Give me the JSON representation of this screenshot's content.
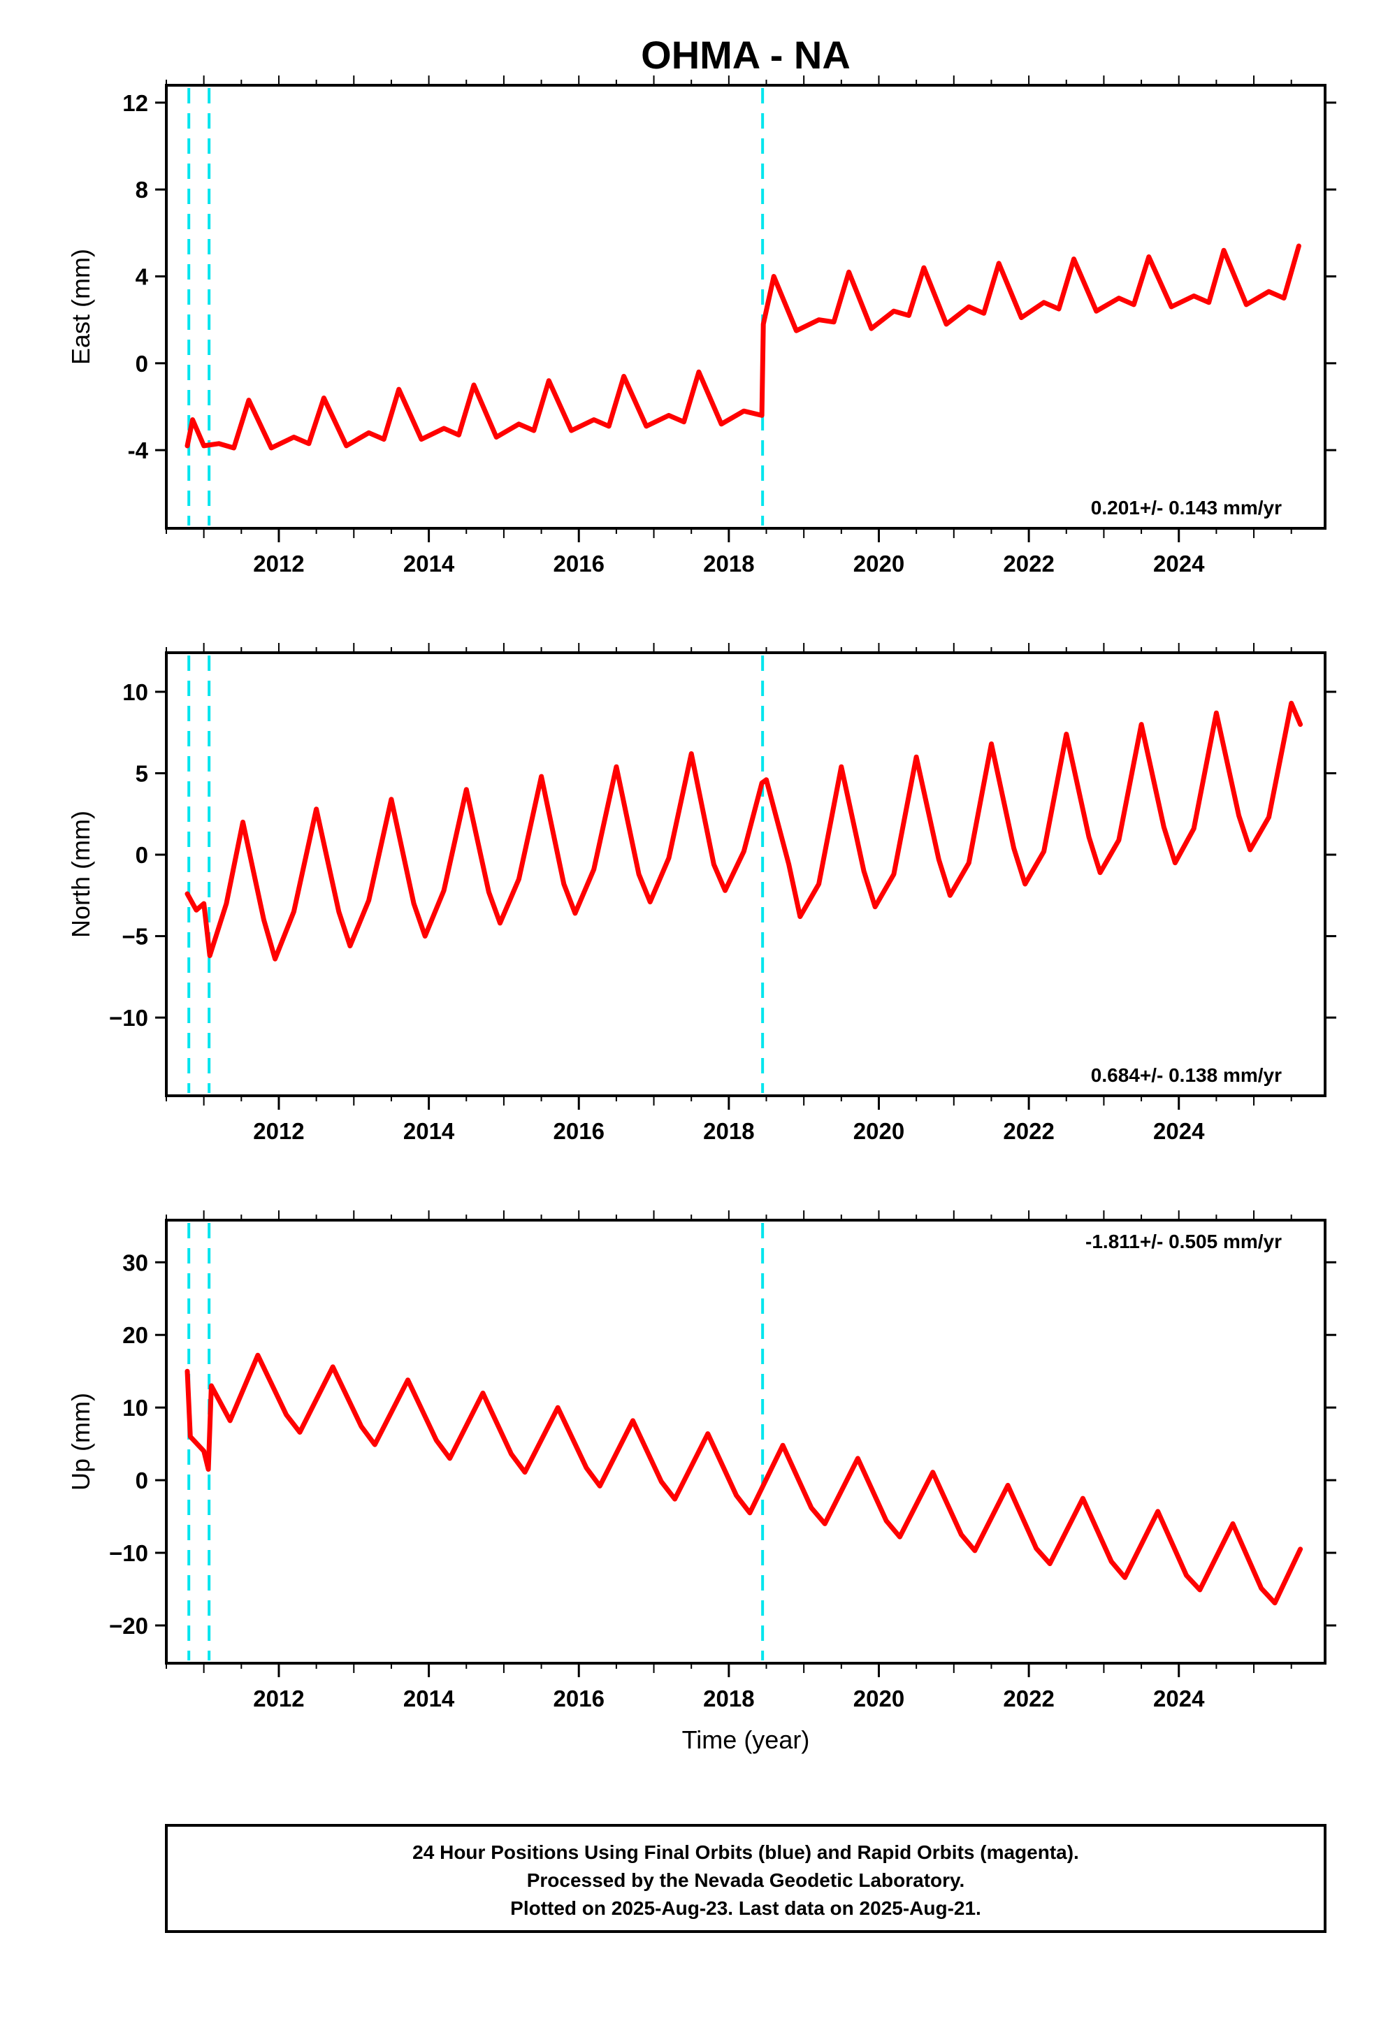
{
  "chart_data": {
    "type": "scatter",
    "title": "OHMA - NA",
    "xlabel": "Time (year)",
    "xlim": [
      2010.5,
      2025.95
    ],
    "x_ticks": [
      2012,
      2014,
      2016,
      2018,
      2020,
      2022,
      2024
    ],
    "x_tick_labels": [
      "2012",
      "2014",
      "2016",
      "2018",
      "2020",
      "2022",
      "2024"
    ],
    "offset_epochs": [
      2010.8,
      2011.07,
      2018.45
    ],
    "colors": {
      "final": "#0000ff",
      "rapid": "#ff00ff",
      "model": "#ff0000",
      "offset": "#00e5ee"
    },
    "panels": [
      {
        "key": "east",
        "ylabel": "East (mm)",
        "ylim": [
          -7.6,
          12.8
        ],
        "y_ticks": [
          -4,
          0,
          4,
          8,
          12
        ],
        "y_tick_labels": [
          "-4",
          "0",
          "4",
          "8",
          "12"
        ],
        "rate": "0.201+/- 0.143 mm/yr",
        "rate_position": "bottom-right",
        "model": {
          "x": [
            2010.78,
            2010.85,
            2011.0,
            2011.2,
            2011.4,
            2011.6,
            2011.9,
            2012.2,
            2012.4,
            2012.6,
            2012.9,
            2013.2,
            2013.4,
            2013.6,
            2013.9,
            2014.2,
            2014.4,
            2014.6,
            2014.9,
            2015.2,
            2015.4,
            2015.6,
            2015.9,
            2016.2,
            2016.4,
            2016.6,
            2016.9,
            2017.2,
            2017.4,
            2017.6,
            2017.9,
            2018.2,
            2018.44,
            2018.46,
            2018.6,
            2018.9,
            2019.2,
            2019.4,
            2019.6,
            2019.9,
            2020.2,
            2020.4,
            2020.6,
            2020.9,
            2021.2,
            2021.4,
            2021.6,
            2021.9,
            2022.2,
            2022.4,
            2022.6,
            2022.9,
            2023.2,
            2023.4,
            2023.6,
            2023.9,
            2024.2,
            2024.4,
            2024.6,
            2024.9,
            2025.2,
            2025.4,
            2025.6
          ],
          "y": [
            -3.8,
            -2.6,
            -3.8,
            -3.7,
            -3.9,
            -1.7,
            -3.9,
            -3.4,
            -3.7,
            -1.6,
            -3.8,
            -3.2,
            -3.5,
            -1.2,
            -3.5,
            -3.0,
            -3.3,
            -1.0,
            -3.4,
            -2.8,
            -3.1,
            -0.8,
            -3.1,
            -2.6,
            -2.9,
            -0.6,
            -2.9,
            -2.4,
            -2.7,
            -0.4,
            -2.8,
            -2.2,
            -2.4,
            1.8,
            4.0,
            1.5,
            2.0,
            1.9,
            4.2,
            1.6,
            2.4,
            2.2,
            4.4,
            1.8,
            2.6,
            2.3,
            4.6,
            2.1,
            2.8,
            2.5,
            4.8,
            2.4,
            3.0,
            2.7,
            4.9,
            2.6,
            3.1,
            2.8,
            5.2,
            2.7,
            3.3,
            3.0,
            5.4
          ]
        }
      },
      {
        "key": "north",
        "ylabel": "North (mm)",
        "ylim": [
          -14.8,
          12.4
        ],
        "y_ticks": [
          -10,
          -5,
          0,
          5,
          10
        ],
        "y_tick_labels": [
          "−10",
          "−5",
          "0",
          "5",
          "10"
        ],
        "rate": "0.684+/- 0.138 mm/yr",
        "rate_position": "bottom-right",
        "model": {
          "x": [
            2010.78,
            2010.9,
            2011.0,
            2011.08,
            2011.3,
            2011.52,
            2011.8,
            2011.95,
            2012.2,
            2012.5,
            2012.8,
            2012.95,
            2013.2,
            2013.5,
            2013.8,
            2013.95,
            2014.2,
            2014.5,
            2014.8,
            2014.95,
            2015.2,
            2015.5,
            2015.8,
            2015.95,
            2016.2,
            2016.5,
            2016.8,
            2016.95,
            2017.2,
            2017.5,
            2017.8,
            2017.95,
            2018.2,
            2018.44,
            2018.5,
            2018.8,
            2018.95,
            2019.2,
            2019.5,
            2019.8,
            2019.95,
            2020.2,
            2020.5,
            2020.8,
            2020.95,
            2021.2,
            2021.5,
            2021.8,
            2021.95,
            2022.2,
            2022.5,
            2022.8,
            2022.95,
            2023.2,
            2023.5,
            2023.8,
            2023.95,
            2024.2,
            2024.5,
            2024.8,
            2024.95,
            2025.2,
            2025.5,
            2025.62
          ],
          "y": [
            -2.4,
            -3.4,
            -3.0,
            -6.2,
            -3.0,
            2.0,
            -4.0,
            -6.4,
            -3.5,
            2.8,
            -3.5,
            -5.6,
            -2.8,
            3.4,
            -3.0,
            -5.0,
            -2.2,
            4.0,
            -2.3,
            -4.2,
            -1.5,
            4.8,
            -1.8,
            -3.6,
            -0.9,
            5.4,
            -1.2,
            -2.9,
            -0.2,
            6.2,
            -0.6,
            -2.2,
            0.2,
            4.4,
            4.6,
            -0.6,
            -3.8,
            -1.8,
            5.4,
            -1.0,
            -3.2,
            -1.2,
            6.0,
            -0.3,
            -2.5,
            -0.5,
            6.8,
            0.4,
            -1.8,
            0.2,
            7.4,
            1.1,
            -1.1,
            0.9,
            8.0,
            1.7,
            -0.5,
            1.6,
            8.7,
            2.4,
            0.3,
            2.3,
            9.3,
            8.0
          ]
        }
      },
      {
        "key": "up",
        "ylabel": "Up (mm)",
        "ylim": [
          -25.2,
          35.8
        ],
        "y_ticks": [
          -20,
          -10,
          0,
          10,
          20,
          30
        ],
        "y_tick_labels": [
          "−20",
          "−10",
          "0",
          "10",
          "20",
          "30"
        ],
        "rate": "-1.811+/- 0.505 mm/yr",
        "rate_position": "top-right",
        "model": {
          "x": [
            2010.78,
            2010.82,
            2011.0,
            2011.06,
            2011.1,
            2011.35,
            2011.72,
            2012.1,
            2012.28,
            2012.72,
            2013.1,
            2013.28,
            2013.72,
            2014.1,
            2014.28,
            2014.72,
            2015.1,
            2015.28,
            2015.72,
            2016.1,
            2016.28,
            2016.72,
            2017.1,
            2017.28,
            2017.72,
            2018.1,
            2018.28,
            2018.72,
            2019.1,
            2019.28,
            2019.72,
            2020.1,
            2020.28,
            2020.72,
            2021.1,
            2021.28,
            2021.72,
            2022.1,
            2022.28,
            2022.72,
            2023.1,
            2023.28,
            2023.72,
            2024.1,
            2024.28,
            2024.72,
            2025.1,
            2025.28,
            2025.62
          ],
          "y": [
            15.0,
            6.0,
            4.0,
            1.5,
            13.0,
            8.2,
            17.2,
            9.0,
            6.6,
            15.6,
            7.4,
            4.9,
            13.8,
            5.5,
            3.0,
            12.0,
            3.6,
            1.1,
            10.0,
            1.7,
            -0.8,
            8.2,
            -0.2,
            -2.6,
            6.4,
            -2.1,
            -4.5,
            4.8,
            -3.8,
            -6.0,
            3.0,
            -5.6,
            -7.8,
            1.1,
            -7.5,
            -9.7,
            -0.7,
            -9.4,
            -11.5,
            -2.5,
            -11.2,
            -13.4,
            -4.3,
            -13.1,
            -15.1,
            -6.0,
            -14.9,
            -16.9,
            -9.5
          ]
        }
      }
    ]
  },
  "footer": {
    "line1": "24 Hour Positions Using Final Orbits (blue) and Rapid Orbits (magenta).",
    "line2": "Processed by the Nevada Geodetic Laboratory.",
    "line3": "Plotted on 2025-Aug-23. Last data on 2025-Aug-21."
  }
}
